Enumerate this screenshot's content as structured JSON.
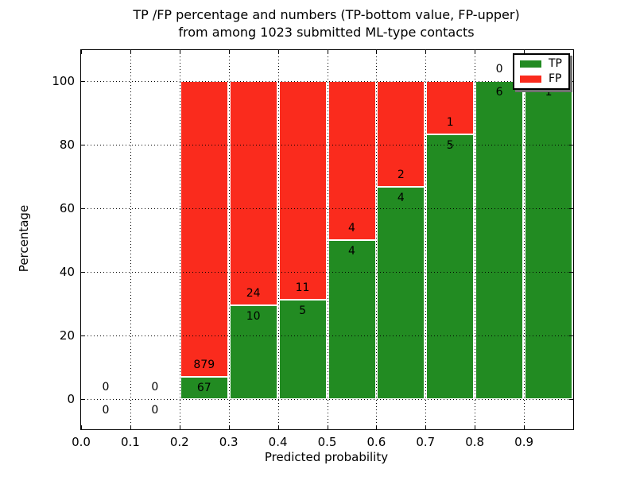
{
  "title": {
    "line1": "TP /FP percentage and numbers (TP-bottom value, FP-upper)",
    "line2": "from among 1023 submitted ML-type contacts"
  },
  "axes": {
    "x_label": "Predicted probability",
    "y_label": "Percentage"
  },
  "colors": {
    "tp_green": "#228b22",
    "fp_red": "#fa2b1d",
    "grid": "#000000",
    "background": "#ffffff"
  },
  "legend": {
    "position": "upper-right",
    "entries": [
      {
        "label": "TP",
        "color": "#228b22"
      },
      {
        "label": "FP",
        "color": "#fa2b1d"
      }
    ]
  },
  "chart_data": {
    "type": "bar",
    "stacked": true,
    "units": "percent of bin, annotated with raw counts",
    "title": "TP /FP percentage and numbers (TP-bottom value, FP-upper) from among 1023 submitted ML-type contacts",
    "xlabel": "Predicted probability",
    "ylabel": "Percentage",
    "xlim": [
      0.0,
      1.0
    ],
    "ylim": [
      -9.5,
      109.75
    ],
    "x_tick_labels": [
      "0.0",
      "0.1",
      "0.2",
      "0.3",
      "0.4",
      "0.5",
      "0.6",
      "0.7",
      "0.8",
      "0.9"
    ],
    "y_tick_values": [
      0,
      20,
      40,
      60,
      80,
      100
    ],
    "grid": true,
    "total_contacts": 1023,
    "series": [
      {
        "name": "TP",
        "values": [
          0,
          0,
          67,
          10,
          5,
          4,
          4,
          5,
          6,
          1
        ]
      },
      {
        "name": "FP",
        "values": [
          0,
          0,
          879,
          24,
          11,
          4,
          2,
          1,
          0,
          0
        ]
      }
    ],
    "bins": [
      {
        "x_start": 0.0,
        "x_end": 0.1,
        "tp": 0,
        "fp": 0,
        "tp_pct": 0,
        "fp_pct": 0
      },
      {
        "x_start": 0.1,
        "x_end": 0.2,
        "tp": 0,
        "fp": 0,
        "tp_pct": 0,
        "fp_pct": 0
      },
      {
        "x_start": 0.2,
        "x_end": 0.3,
        "tp": 67,
        "fp": 879,
        "tp_pct": 7.08,
        "fp_pct": 92.92
      },
      {
        "x_start": 0.3,
        "x_end": 0.4,
        "tp": 10,
        "fp": 24,
        "tp_pct": 29.41,
        "fp_pct": 70.59
      },
      {
        "x_start": 0.4,
        "x_end": 0.5,
        "tp": 5,
        "fp": 11,
        "tp_pct": 31.25,
        "fp_pct": 68.75
      },
      {
        "x_start": 0.5,
        "x_end": 0.6,
        "tp": 4,
        "fp": 4,
        "tp_pct": 50.0,
        "fp_pct": 50.0
      },
      {
        "x_start": 0.6,
        "x_end": 0.7,
        "tp": 4,
        "fp": 2,
        "tp_pct": 66.67,
        "fp_pct": 33.33
      },
      {
        "x_start": 0.7,
        "x_end": 0.8,
        "tp": 5,
        "fp": 1,
        "tp_pct": 83.33,
        "fp_pct": 16.67
      },
      {
        "x_start": 0.8,
        "x_end": 0.9,
        "tp": 6,
        "fp": 0,
        "tp_pct": 100.0,
        "fp_pct": 0
      },
      {
        "x_start": 0.9,
        "x_end": 1.0,
        "tp": 1,
        "fp": 0,
        "tp_pct": 100.0,
        "fp_pct": 0
      }
    ],
    "legend_entries": [
      "TP",
      "FP"
    ]
  }
}
